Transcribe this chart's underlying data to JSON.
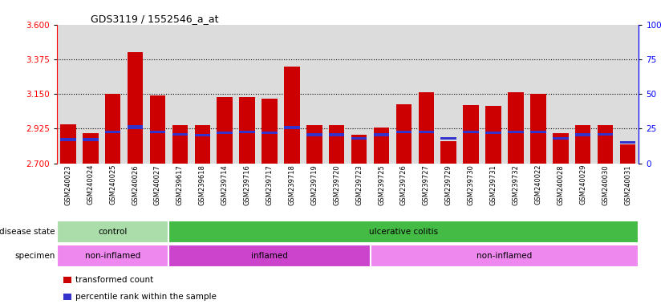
{
  "title": "GDS3119 / 1552546_a_at",
  "samples": [
    "GSM240023",
    "GSM240024",
    "GSM240025",
    "GSM240026",
    "GSM240027",
    "GSM239617",
    "GSM239618",
    "GSM239714",
    "GSM239716",
    "GSM239717",
    "GSM239718",
    "GSM239719",
    "GSM239720",
    "GSM239723",
    "GSM239725",
    "GSM239726",
    "GSM239727",
    "GSM239729",
    "GSM239730",
    "GSM239731",
    "GSM239732",
    "GSM240022",
    "GSM240028",
    "GSM240029",
    "GSM240030",
    "GSM240031"
  ],
  "bar_heights": [
    2.955,
    2.895,
    3.15,
    3.42,
    3.14,
    2.945,
    2.945,
    3.13,
    3.13,
    3.12,
    3.33,
    2.945,
    2.95,
    2.885,
    2.93,
    3.085,
    3.16,
    2.845,
    3.08,
    3.075,
    3.16,
    3.15,
    2.895,
    2.95,
    2.945,
    2.82
  ],
  "blue_heights": [
    0.018,
    0.018,
    0.018,
    0.025,
    0.018,
    0.018,
    0.015,
    0.018,
    0.018,
    0.018,
    0.022,
    0.018,
    0.018,
    0.015,
    0.018,
    0.018,
    0.018,
    0.015,
    0.018,
    0.018,
    0.018,
    0.018,
    0.015,
    0.018,
    0.015,
    0.015
  ],
  "blue_bottoms": [
    2.845,
    2.845,
    2.895,
    2.92,
    2.895,
    2.878,
    2.875,
    2.888,
    2.893,
    2.888,
    2.922,
    2.875,
    2.875,
    2.853,
    2.875,
    2.893,
    2.893,
    2.853,
    2.893,
    2.888,
    2.893,
    2.893,
    2.853,
    2.875,
    2.878,
    2.828
  ],
  "ymin": 2.7,
  "ymax": 3.6,
  "yticks_left": [
    2.7,
    2.925,
    3.15,
    3.375,
    3.6
  ],
  "yticks_right": [
    0,
    25,
    50,
    75,
    100
  ],
  "hlines": [
    2.925,
    3.15,
    3.375
  ],
  "bar_color": "#CC0000",
  "blue_color": "#3333CC",
  "disease_state_groups": [
    {
      "label": "control",
      "start": 0,
      "end": 5,
      "color": "#aaddaa"
    },
    {
      "label": "ulcerative colitis",
      "start": 5,
      "end": 26,
      "color": "#44bb44"
    }
  ],
  "specimen_groups": [
    {
      "label": "non-inflamed",
      "start": 0,
      "end": 5,
      "color": "#ee88ee"
    },
    {
      "label": "inflamed",
      "start": 5,
      "end": 14,
      "color": "#cc44cc"
    },
    {
      "label": "non-inflamed",
      "start": 14,
      "end": 26,
      "color": "#ee88ee"
    }
  ],
  "legend_items": [
    {
      "label": "transformed count",
      "color": "#CC0000"
    },
    {
      "label": "percentile rank within the sample",
      "color": "#3333CC"
    }
  ],
  "bg_color": "#DCDCDC",
  "plot_bg": "#FFFFFF",
  "n": 26
}
